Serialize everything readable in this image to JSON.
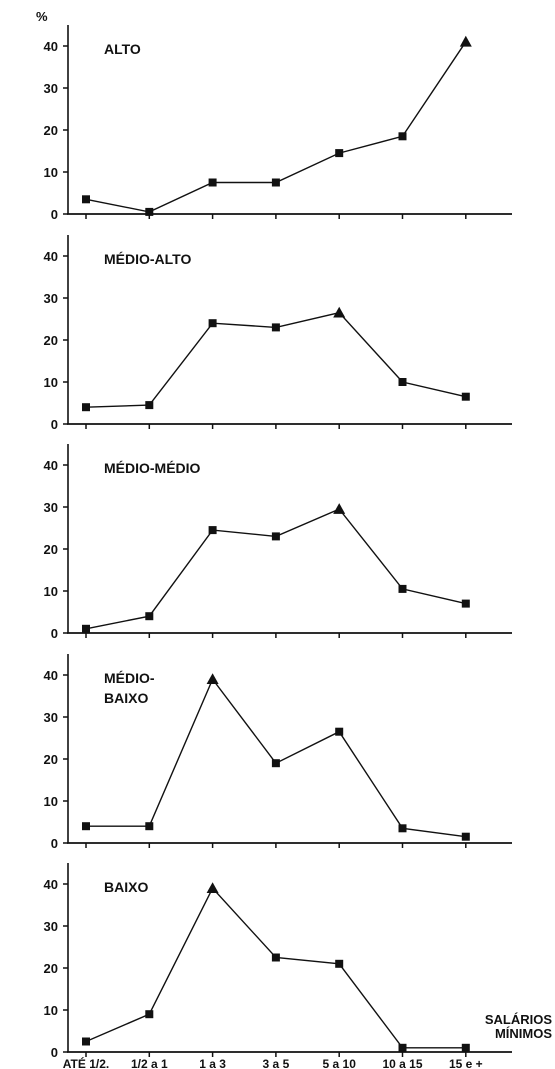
{
  "chart_data": {
    "type": "line",
    "y_unit": "%",
    "x_axis_title": [
      "SALÁRIOS",
      "MÍNIMOS"
    ],
    "categories": [
      "ATÉ 1/2.",
      "1/2 a 1",
      "1 a 3",
      "3 a 5",
      "5 a 10",
      "10 a 15",
      "15 e +"
    ],
    "ylim": [
      0,
      45
    ],
    "yticks": [
      0,
      10,
      20,
      30,
      40
    ],
    "grid": false,
    "marker_shapes": {
      "default": "square",
      "peak": "triangle"
    },
    "panels": [
      {
        "label": [
          "ALTO"
        ],
        "values": [
          3.5,
          0.5,
          7.5,
          7.5,
          14.5,
          18.5,
          41
        ],
        "peak_index": 6
      },
      {
        "label": [
          "MÉDIO-ALTO"
        ],
        "values": [
          4,
          4.5,
          24,
          23,
          26.5,
          10,
          6.5
        ],
        "peak_index": 4
      },
      {
        "label": [
          "MÉDIO-MÉDIO"
        ],
        "values": [
          1,
          4,
          24.5,
          23,
          29.5,
          10.5,
          7
        ],
        "peak_index": 4
      },
      {
        "label": [
          "MÉDIO-",
          "BAIXO"
        ],
        "values": [
          4,
          4,
          39,
          19,
          26.5,
          3.5,
          1.5
        ],
        "peak_index": 2
      },
      {
        "label": [
          "BAIXO"
        ],
        "values": [
          2.5,
          9,
          39,
          22.5,
          21,
          1,
          1
        ],
        "peak_index": 2
      }
    ]
  }
}
